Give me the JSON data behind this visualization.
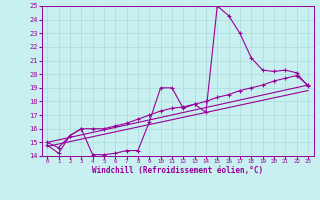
{
  "xlabel": "Windchill (Refroidissement éolien,°C)",
  "background_color": "#c8f0f0",
  "line_color": "#990099",
  "grid_color": "#b0dede",
  "xlim": [
    -0.5,
    23.5
  ],
  "ylim": [
    14,
    25
  ],
  "yticks": [
    14,
    15,
    16,
    17,
    18,
    19,
    20,
    21,
    22,
    23,
    24,
    25
  ],
  "xticks": [
    0,
    1,
    2,
    3,
    4,
    5,
    6,
    7,
    8,
    9,
    10,
    11,
    12,
    13,
    14,
    15,
    16,
    17,
    18,
    19,
    20,
    21,
    22,
    23
  ],
  "line1_x": [
    0,
    1,
    2,
    3,
    4,
    5,
    6,
    7,
    8,
    9,
    10,
    11,
    12,
    13,
    14,
    15,
    16,
    17,
    18,
    19,
    20,
    21,
    22,
    23
  ],
  "line1_y": [
    14.8,
    14.2,
    15.5,
    16.0,
    14.1,
    14.1,
    14.2,
    14.4,
    14.4,
    16.5,
    19.0,
    19.0,
    17.5,
    17.8,
    17.2,
    25.0,
    24.3,
    23.0,
    21.2,
    20.3,
    20.2,
    20.3,
    20.1,
    19.1
  ],
  "line2_x": [
    0,
    1,
    2,
    3,
    4,
    5,
    6,
    7,
    8,
    9,
    10,
    11,
    12,
    13,
    14,
    15,
    16,
    17,
    18,
    19,
    20,
    21,
    22,
    23
  ],
  "line2_y": [
    15.0,
    14.6,
    15.5,
    16.0,
    16.0,
    16.0,
    16.2,
    16.4,
    16.7,
    17.0,
    17.3,
    17.5,
    17.6,
    17.8,
    18.0,
    18.3,
    18.5,
    18.8,
    19.0,
    19.2,
    19.5,
    19.7,
    19.9,
    19.2
  ],
  "line3_x": [
    0,
    23
  ],
  "line3_y": [
    15.0,
    19.2
  ],
  "line4_x": [
    0,
    23
  ],
  "line4_y": [
    14.7,
    18.8
  ]
}
